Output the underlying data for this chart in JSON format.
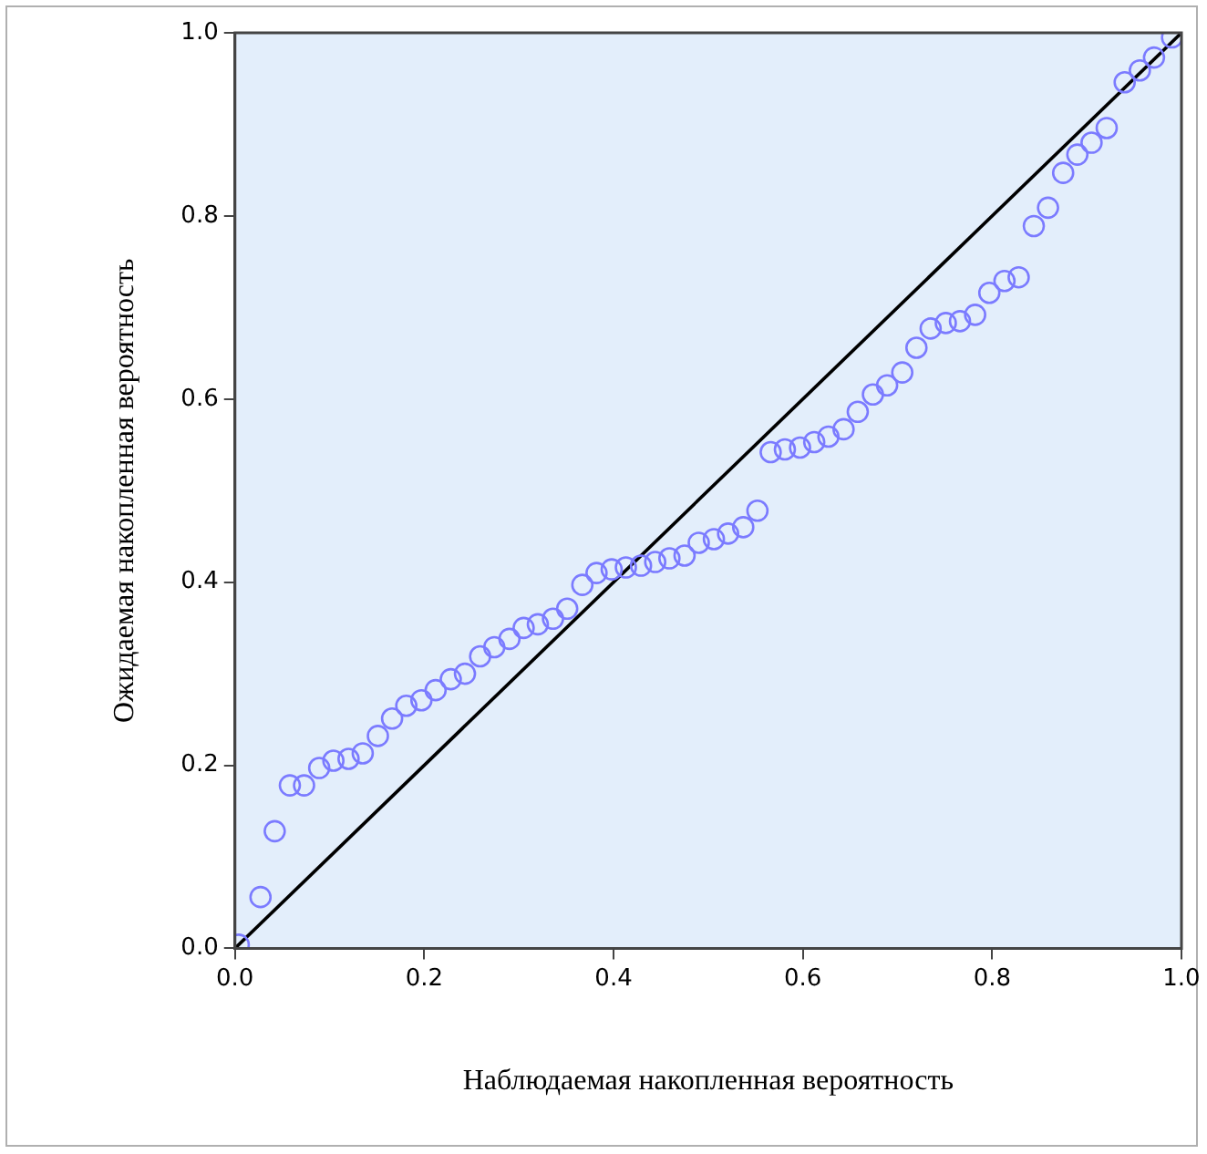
{
  "chart_data": {
    "type": "scatter",
    "xlabel": "Наблюдаемая накопленная вероятность",
    "ylabel": "Ожидаемая накопленная вероятность",
    "xlim": [
      0,
      1
    ],
    "ylim": [
      0,
      1
    ],
    "xticks": [
      {
        "value": 0,
        "label": "0.0"
      },
      {
        "value": 0.2,
        "label": "0.2"
      },
      {
        "value": 0.4,
        "label": "0.4"
      },
      {
        "value": 0.6,
        "label": "0.6"
      },
      {
        "value": 0.8,
        "label": "0.8"
      },
      {
        "value": 1,
        "label": "1.0"
      }
    ],
    "yticks": [
      {
        "value": 0,
        "label": "0.0"
      },
      {
        "value": 0.2,
        "label": "0.2"
      },
      {
        "value": 0.4,
        "label": "0.4"
      },
      {
        "value": 0.6,
        "label": "0.6"
      },
      {
        "value": 0.8,
        "label": "0.8"
      },
      {
        "value": 1,
        "label": "1.0"
      }
    ],
    "grid": false,
    "legend": false,
    "series": [
      {
        "type": "scatter",
        "color": "#7b7bff",
        "marker": "circle",
        "x": [
          0.004,
          0.027,
          0.042,
          0.058,
          0.073,
          0.089,
          0.104,
          0.12,
          0.135,
          0.151,
          0.166,
          0.181,
          0.197,
          0.212,
          0.228,
          0.243,
          0.259,
          0.274,
          0.29,
          0.305,
          0.32,
          0.336,
          0.351,
          0.367,
          0.382,
          0.398,
          0.413,
          0.429,
          0.444,
          0.459,
          0.475,
          0.49,
          0.506,
          0.521,
          0.537,
          0.552,
          0.566,
          0.581,
          0.597,
          0.612,
          0.627,
          0.643,
          0.658,
          0.674,
          0.689,
          0.705,
          0.72,
          0.735,
          0.751,
          0.766,
          0.782,
          0.797,
          0.813,
          0.828,
          0.844,
          0.859,
          0.875,
          0.89,
          0.905,
          0.921,
          0.94,
          0.956,
          0.971,
          0.99
        ],
        "values": [
          0.004,
          0.056,
          0.128,
          0.178,
          0.178,
          0.197,
          0.205,
          0.207,
          0.213,
          0.232,
          0.251,
          0.265,
          0.271,
          0.282,
          0.294,
          0.3,
          0.319,
          0.329,
          0.338,
          0.35,
          0.354,
          0.36,
          0.371,
          0.397,
          0.41,
          0.414,
          0.416,
          0.418,
          0.422,
          0.426,
          0.429,
          0.443,
          0.447,
          0.453,
          0.46,
          0.478,
          0.542,
          0.545,
          0.547,
          0.553,
          0.559,
          0.567,
          0.586,
          0.605,
          0.615,
          0.629,
          0.656,
          0.677,
          0.683,
          0.685,
          0.692,
          0.716,
          0.729,
          0.733,
          0.789,
          0.809,
          0.847,
          0.867,
          0.88,
          0.896,
          0.946,
          0.959,
          0.973,
          0.995
        ]
      },
      {
        "type": "line",
        "color": "#000000",
        "x": [
          0,
          1
        ],
        "values": [
          0,
          1
        ]
      }
    ]
  }
}
